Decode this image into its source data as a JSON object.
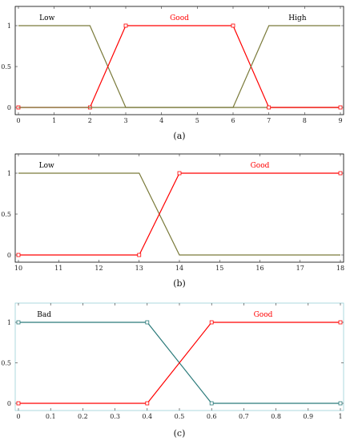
{
  "chart_data": [
    {
      "type": "line",
      "caption": "(a)",
      "xlim": [
        0,
        9
      ],
      "ylim": [
        0,
        1
      ],
      "xticks": [
        0,
        1,
        2,
        3,
        4,
        5,
        6,
        7,
        8,
        9
      ],
      "yticks": [
        0,
        0.5,
        1
      ],
      "xtick_labels": [
        "0",
        "1",
        "2",
        "3",
        "4",
        "5",
        "6",
        "7",
        "8",
        "9"
      ],
      "ytick_labels": [
        "0",
        "0.5",
        "1"
      ],
      "frame_color": "#000000",
      "series": [
        {
          "name": "Low",
          "color": "#7a7a3a",
          "x": [
            0,
            2,
            3,
            9
          ],
          "y": [
            1,
            1,
            0,
            0
          ],
          "markers": false
        },
        {
          "name": "Good",
          "color": "#ff0000",
          "x": [
            0,
            2,
            3,
            6,
            7,
            9
          ],
          "y": [
            0,
            0,
            1,
            1,
            0,
            0
          ],
          "markers": true
        },
        {
          "name": "High",
          "color": "#7a7a3a",
          "x": [
            0,
            6,
            7,
            9
          ],
          "y": [
            0,
            0,
            1,
            1
          ],
          "markers": false
        }
      ],
      "labels": [
        {
          "text": "Low",
          "color": "#000000",
          "x": 0.8,
          "y": 1.1
        },
        {
          "text": "Good",
          "color": "#ff0000",
          "x": 4.5,
          "y": 1.1
        },
        {
          "text": "High",
          "color": "#000000",
          "x": 7.8,
          "y": 1.1
        }
      ]
    },
    {
      "type": "line",
      "caption": "(b)",
      "xlim": [
        10,
        18
      ],
      "ylim": [
        0,
        1
      ],
      "xticks": [
        10,
        11,
        12,
        13,
        14,
        15,
        16,
        17,
        18
      ],
      "yticks": [
        0,
        0.5,
        1
      ],
      "xtick_labels": [
        "10",
        "11",
        "12",
        "13",
        "14",
        "15",
        "16",
        "17",
        "18"
      ],
      "ytick_labels": [
        "0",
        "0.5",
        "1"
      ],
      "frame_color": "#000000",
      "series": [
        {
          "name": "Low",
          "color": "#7a7a3a",
          "x": [
            10,
            13,
            14,
            18
          ],
          "y": [
            1,
            1,
            0,
            0
          ],
          "markers": false
        },
        {
          "name": "Good",
          "color": "#ff0000",
          "x": [
            10,
            13,
            14,
            18
          ],
          "y": [
            0,
            0,
            1,
            1
          ],
          "markers": true
        }
      ],
      "labels": [
        {
          "text": "Low",
          "color": "#000000",
          "x": 10.7,
          "y": 1.1
        },
        {
          "text": "Good",
          "color": "#ff0000",
          "x": 16.0,
          "y": 1.1
        }
      ]
    },
    {
      "type": "line",
      "caption": "(c)",
      "xlim": [
        0,
        1
      ],
      "ylim": [
        0,
        1
      ],
      "xticks": [
        0,
        0.1,
        0.2,
        0.3,
        0.4,
        0.5,
        0.6,
        0.7,
        0.8,
        0.9,
        1
      ],
      "yticks": [
        0,
        0.5,
        1
      ],
      "xtick_labels": [
        "0",
        "0.1",
        "0.2",
        "0.3",
        "0.4",
        "0.5",
        "0.6",
        "0.7",
        "0.8",
        "0.9",
        "1"
      ],
      "ytick_labels": [
        "0",
        "0.5",
        "1"
      ],
      "frame_color": "#9ad0d8",
      "series": [
        {
          "name": "Bad",
          "color": "#2a7a7a",
          "x": [
            0,
            0.4,
            0.6,
            1
          ],
          "y": [
            1,
            1,
            0,
            0
          ],
          "markers": true
        },
        {
          "name": "Good",
          "color": "#ff0000",
          "x": [
            0,
            0.4,
            0.6,
            1
          ],
          "y": [
            0,
            0,
            1,
            1
          ],
          "markers": true
        }
      ],
      "labels": [
        {
          "text": "Bad",
          "color": "#000000",
          "x": 0.08,
          "y": 1.1
        },
        {
          "text": "Good",
          "color": "#ff0000",
          "x": 0.76,
          "y": 1.1
        }
      ]
    }
  ]
}
